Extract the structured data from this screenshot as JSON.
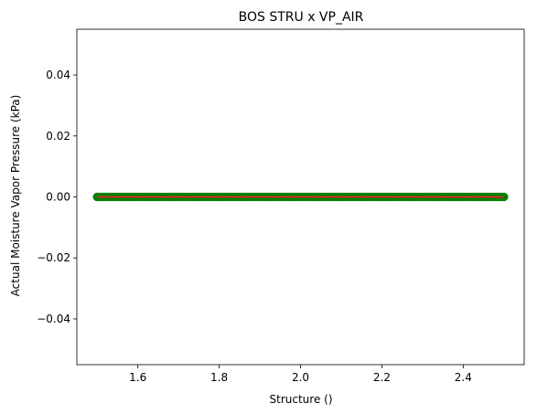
{
  "chart_data": {
    "type": "scatter",
    "title": "BOS STRU x VP_AIR",
    "xlabel": "Structure ()",
    "ylabel": "Actual Moisture Vapor Pressure (kPa)",
    "xlim": [
      1.45,
      2.55
    ],
    "ylim": [
      -0.055,
      0.055
    ],
    "x_ticks": [
      1.6,
      1.8,
      2.0,
      2.2,
      2.4
    ],
    "x_tick_labels": [
      "1.6",
      "1.8",
      "2.0",
      "2.2",
      "2.4"
    ],
    "y_ticks": [
      -0.04,
      -0.02,
      0.0,
      0.02,
      0.04
    ],
    "y_tick_labels": [
      "−0.04",
      "−0.02",
      "0.00",
      "0.02",
      "0.04"
    ],
    "grid": false,
    "series": [
      {
        "kind": "scatter",
        "color": "#008000",
        "x_range": [
          1.5,
          2.5
        ],
        "y": 0.0
      },
      {
        "kind": "line",
        "color": "#d62728",
        "x": [
          1.5,
          2.5
        ],
        "y": [
          0.0,
          0.0
        ]
      }
    ]
  }
}
